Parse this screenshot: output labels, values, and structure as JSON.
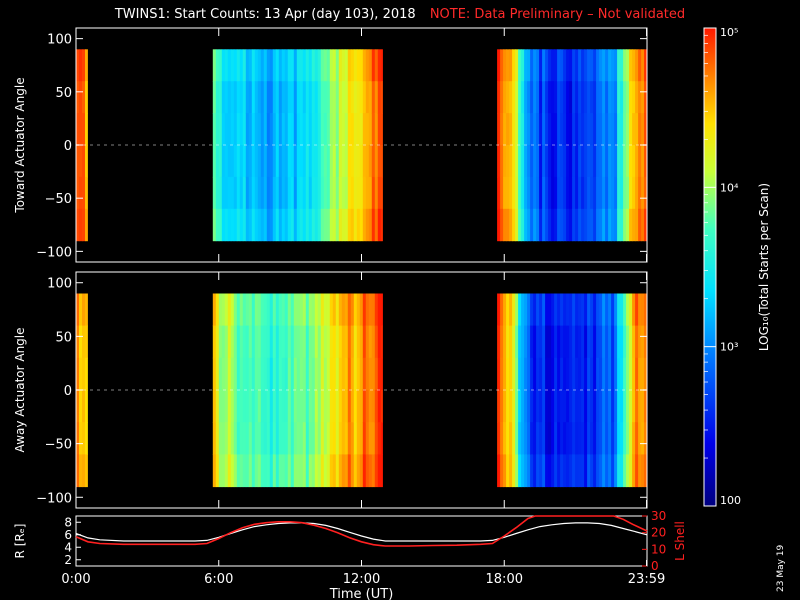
{
  "title": "TWINS1: Start Counts: 13 Apr (day 103), 2018",
  "note": "NOTE: Data Preliminary – Not validated",
  "stamp": "23 May 19",
  "chart_data": [
    {
      "type": "heatmap",
      "panel": "toward",
      "ylabel": "Toward Actuator Angle",
      "ylim": [
        -110,
        110
      ],
      "yticks": [
        "100",
        "50",
        "0",
        "−50",
        "−100"
      ],
      "yticks_values": [
        100,
        50,
        0,
        -50,
        -100
      ],
      "y_extent": [
        -90,
        90
      ],
      "data_segments_hours": [
        [
          0.0,
          0.5
        ],
        [
          5.75,
          12.9
        ],
        [
          17.7,
          24.0
        ]
      ],
      "log10_starts_profile": [
        [
          0.0,
          4.6
        ],
        [
          0.25,
          4.8
        ],
        [
          0.45,
          4.3
        ],
        [
          5.75,
          3.7
        ],
        [
          6.3,
          3.3
        ],
        [
          7.0,
          3.2
        ],
        [
          8.0,
          3.1
        ],
        [
          9.0,
          3.2
        ],
        [
          10.0,
          3.4
        ],
        [
          10.6,
          3.9
        ],
        [
          11.3,
          4.2
        ],
        [
          12.0,
          4.5
        ],
        [
          12.5,
          4.7
        ],
        [
          12.9,
          4.8
        ],
        [
          17.7,
          4.8
        ],
        [
          18.2,
          4.6
        ],
        [
          18.8,
          3.2
        ],
        [
          19.5,
          2.6
        ],
        [
          20.5,
          2.5
        ],
        [
          21.5,
          2.6
        ],
        [
          22.5,
          2.9
        ],
        [
          23.0,
          3.8
        ],
        [
          23.5,
          4.7
        ],
        [
          24.0,
          4.8
        ]
      ]
    },
    {
      "type": "heatmap",
      "panel": "away",
      "ylabel": "Away Actuator Angle",
      "ylim": [
        -110,
        110
      ],
      "yticks": [
        "100",
        "50",
        "0",
        "−50",
        "−100"
      ],
      "yticks_values": [
        100,
        50,
        0,
        -50,
        -100
      ],
      "y_extent": [
        -90,
        90
      ],
      "data_segments_hours": [
        [
          0.0,
          0.5
        ],
        [
          5.75,
          12.9
        ],
        [
          17.7,
          24.0
        ]
      ],
      "log10_starts_profile": [
        [
          0.0,
          4.7
        ],
        [
          0.25,
          4.5
        ],
        [
          0.45,
          4.6
        ],
        [
          5.75,
          4.2
        ],
        [
          6.3,
          3.9
        ],
        [
          7.0,
          3.7
        ],
        [
          8.0,
          3.6
        ],
        [
          9.0,
          3.7
        ],
        [
          10.0,
          3.9
        ],
        [
          10.6,
          4.2
        ],
        [
          11.3,
          4.4
        ],
        [
          12.0,
          4.6
        ],
        [
          12.5,
          4.8
        ],
        [
          12.9,
          4.8
        ],
        [
          17.7,
          4.7
        ],
        [
          18.2,
          4.4
        ],
        [
          18.6,
          3.4
        ],
        [
          19.2,
          2.5
        ],
        [
          20.5,
          2.4
        ],
        [
          21.5,
          2.5
        ],
        [
          22.5,
          2.8
        ],
        [
          23.0,
          3.8
        ],
        [
          23.5,
          4.6
        ],
        [
          24.0,
          4.8
        ]
      ]
    },
    {
      "type": "line",
      "panel": "orbit",
      "ylabel": "R [Rₑ]",
      "ylim": [
        1,
        9
      ],
      "yticks": [
        "8",
        "6",
        "4",
        "2"
      ],
      "yticks_values": [
        8,
        6,
        4,
        2
      ],
      "y2label": "L Shell",
      "y2lim": [
        0,
        30
      ],
      "y2ticks": [
        "30",
        "20",
        "10",
        "0"
      ],
      "y2ticks_values": [
        30,
        20,
        10,
        0
      ],
      "xlabel": "Time (UT)",
      "xlim": [
        0,
        24
      ],
      "xticks": [
        "0:00",
        "6:00",
        "12:00",
        "18:00",
        "23:59"
      ],
      "xticks_values": [
        0,
        6,
        12,
        18,
        23.98
      ],
      "series": [
        {
          "name": "R",
          "color": "#ffffff",
          "x": [
            0,
            0.5,
            1,
            2,
            3,
            4,
            5,
            5.5,
            6,
            6.5,
            7,
            7.5,
            8,
            8.5,
            9,
            9.5,
            10,
            10.5,
            11,
            11.5,
            12,
            12.5,
            13,
            14,
            15,
            16,
            17,
            17.5,
            18,
            18.5,
            19,
            19.5,
            20,
            20.5,
            21,
            21.5,
            22,
            22.5,
            23,
            23.5,
            24
          ],
          "values": [
            6.2,
            5.5,
            5.2,
            5.0,
            5.0,
            5.0,
            5.0,
            5.1,
            5.6,
            6.2,
            6.8,
            7.3,
            7.6,
            7.8,
            7.9,
            7.9,
            7.8,
            7.5,
            7.0,
            6.4,
            5.8,
            5.3,
            5.0,
            5.0,
            5.0,
            5.0,
            5.0,
            5.1,
            5.6,
            6.2,
            6.8,
            7.3,
            7.6,
            7.8,
            7.9,
            7.9,
            7.8,
            7.5,
            7.0,
            6.5,
            6.0
          ]
        },
        {
          "name": "L Shell",
          "color": "#ff2020",
          "x": [
            0,
            0.5,
            1,
            2,
            3,
            4,
            5,
            5.5,
            6,
            6.5,
            7,
            7.5,
            8,
            8.5,
            9,
            9.5,
            10,
            10.5,
            11,
            11.5,
            12,
            12.5,
            13,
            14,
            15,
            16,
            17,
            17.5,
            18,
            18.5,
            19,
            19.3,
            22.6,
            23.0,
            23.4,
            24
          ],
          "values": [
            17.5,
            14.5,
            13.5,
            13.0,
            13.0,
            13.0,
            13.0,
            13.5,
            16.5,
            20.0,
            23.0,
            25.0,
            26.0,
            26.5,
            26.5,
            26.0,
            24.5,
            22.5,
            20.0,
            17.0,
            14.5,
            12.8,
            12.0,
            12.0,
            12.3,
            12.5,
            13.0,
            13.5,
            18.0,
            23.0,
            28.5,
            31.0,
            31.0,
            28.0,
            25.0,
            21.0
          ]
        }
      ]
    }
  ],
  "colorbar": {
    "label": "LOG₁₀(Total Starts per Scan)",
    "scale": "log",
    "range": [
      100,
      100000
    ],
    "tick_labels": [
      "10⁵",
      "10⁴",
      "10³",
      "100"
    ],
    "tick_values": [
      100000,
      10000,
      1000,
      100
    ]
  }
}
